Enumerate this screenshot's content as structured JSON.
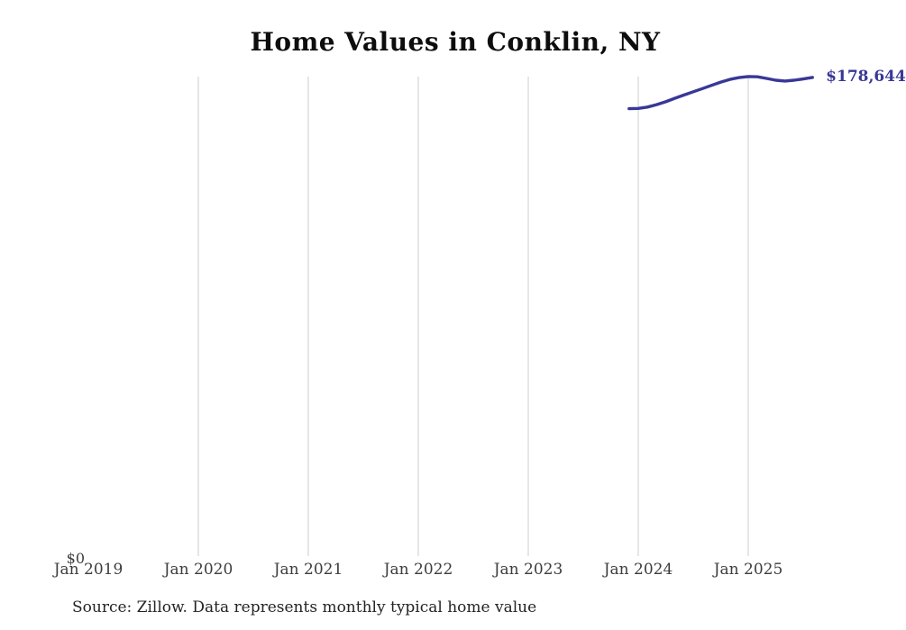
{
  "page": {
    "title": "Home Values in Conklin, NY",
    "source_note": "Source: Zillow. Data represents monthly typical home value"
  },
  "chart_data": {
    "type": "line",
    "title": "Home Values in Conklin, NY",
    "series_name": "Monthly typical home value",
    "x": [
      "2023-12",
      "2024-01",
      "2024-02",
      "2024-03",
      "2024-04",
      "2024-05",
      "2024-06",
      "2024-07",
      "2024-08",
      "2024-09",
      "2024-10",
      "2024-11",
      "2024-12",
      "2025-01",
      "2025-02",
      "2025-03",
      "2025-04",
      "2025-05",
      "2025-06",
      "2025-07",
      "2025-08"
    ],
    "values": [
      167000,
      167100,
      167600,
      168500,
      169600,
      170900,
      172100,
      173300,
      174500,
      175700,
      176900,
      177900,
      178600,
      179000,
      178900,
      178300,
      177600,
      177300,
      177600,
      178100,
      178644
    ],
    "end_label": "$178,644",
    "y_zero_label": "$0",
    "x_ticks": [
      {
        "label": "Jan 2019",
        "gridline": false
      },
      {
        "label": "Jan 2020",
        "gridline": true
      },
      {
        "label": "Jan 2021",
        "gridline": true
      },
      {
        "label": "Jan 2022",
        "gridline": true
      },
      {
        "label": "Jan 2023",
        "gridline": true
      },
      {
        "label": "Jan 2024",
        "gridline": true
      },
      {
        "label": "Jan 2025",
        "gridline": true
      }
    ],
    "xlabel": "",
    "ylabel": "",
    "ylim": [
      0,
      185000
    ],
    "x_range_years": [
      "2019-01",
      "2026-01"
    ],
    "grid": "vertical-only",
    "legend": "none",
    "line_color": "#393896",
    "gridline_color": "#cccccc",
    "label_color": "#393896"
  }
}
